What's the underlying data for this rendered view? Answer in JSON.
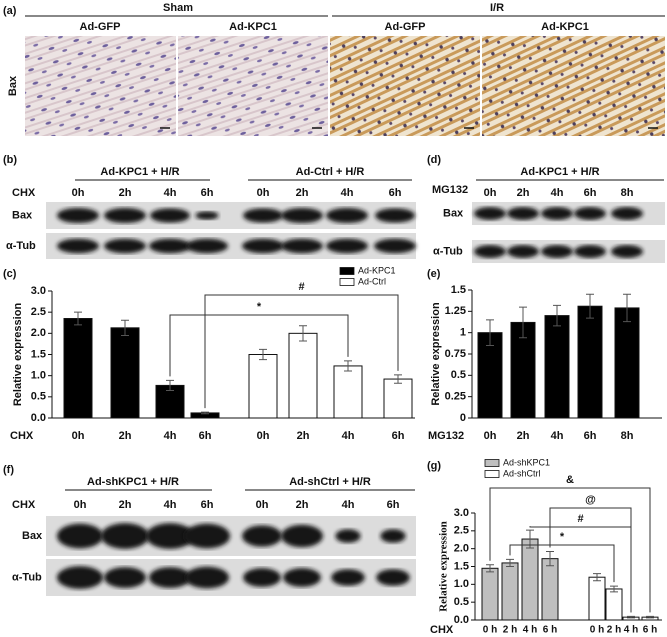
{
  "figure": {
    "a": {
      "label": "(a)",
      "groups": [
        "Sham",
        "I/R"
      ],
      "columns": [
        "Ad-GFP",
        "Ad-KPC1",
        "Ad-GFP",
        "Ad-KPC1"
      ],
      "row_label": "Bax"
    },
    "b": {
      "label": "(b)",
      "groups": [
        "Ad-KPC1 + H/R",
        "Ad-Ctrl + H/R"
      ],
      "time_label": "CHX",
      "times": [
        "0h",
        "2h",
        "4h",
        "6h",
        "0h",
        "2h",
        "4h",
        "6h"
      ],
      "rows": [
        "Bax",
        "α-Tub"
      ]
    },
    "d": {
      "label": "(d)",
      "groups": [
        "Ad-KPC1 + H/R"
      ],
      "time_label": "MG132",
      "times": [
        "0h",
        "2h",
        "4h",
        "6h",
        "8h"
      ],
      "rows": [
        "Bax",
        "α-Tub"
      ]
    },
    "f": {
      "label": "(f)",
      "groups": [
        "Ad-shKPC1 + H/R",
        "Ad-shCtrl + H/R"
      ],
      "time_label": "CHX",
      "times": [
        "0h",
        "2h",
        "4h",
        "6h",
        "0h",
        "2h",
        "4h",
        "6h"
      ],
      "rows": [
        "Bax",
        "α-Tub"
      ]
    }
  },
  "chart_data": [
    {
      "type": "bar",
      "label": "(c)",
      "y_label": "Relative expression",
      "x_label": "CHX",
      "categories": [
        "0h",
        "2h",
        "4h",
        "6h",
        "0h",
        "2h",
        "4h",
        "6h"
      ],
      "series": [
        {
          "name": "Ad-KPC1",
          "color": "#000000",
          "values": [
            2.35,
            2.13,
            0.77,
            0.12,
            null,
            null,
            null,
            null
          ],
          "errors": [
            0.15,
            0.18,
            0.12,
            0.02,
            null,
            null,
            null,
            null
          ]
        },
        {
          "name": "Ad-Ctrl",
          "color": "#ffffff",
          "values": [
            null,
            null,
            null,
            null,
            1.5,
            2.0,
            1.23,
            0.92
          ],
          "errors": [
            null,
            null,
            null,
            null,
            0.12,
            0.18,
            0.12,
            0.1
          ]
        }
      ],
      "ylim": [
        0,
        3
      ],
      "yticks": [
        {
          "value": 0,
          "label": "0.0"
        },
        0.5,
        {
          "value": 1,
          "label": "1.0"
        },
        1.5,
        {
          "value": 2,
          "label": "2.0"
        },
        2.5,
        {
          "value": 3,
          "label": "3.0"
        }
      ],
      "annotations": [
        "*",
        "#"
      ],
      "legend": "top-right"
    },
    {
      "type": "bar",
      "label": "(e)",
      "y_label": "Relative expression",
      "x_label": "MG132",
      "categories": [
        "0h",
        "2h",
        "4h",
        "6h",
        "8h"
      ],
      "color": "#000000",
      "values": [
        1.0,
        1.12,
        1.2,
        1.31,
        1.29
      ],
      "errors": [
        0.15,
        0.18,
        0.12,
        0.14,
        0.16
      ],
      "ylim": [
        0,
        1.5
      ],
      "yticks": [
        0,
        0.25,
        0.5,
        0.75,
        1,
        1.25,
        1.5
      ]
    },
    {
      "type": "bar",
      "label": "(g)",
      "y_label": "Relative expression",
      "x_label": "CHX",
      "categories": [
        "0 h",
        "2 h",
        "4 h",
        "6 h",
        "0 h",
        "2 h",
        "4 h",
        "6 h"
      ],
      "series": [
        {
          "name": "Ad-shKPC1",
          "color": "#bfbfbf",
          "values": [
            1.45,
            1.6,
            2.27,
            1.72,
            null,
            null,
            null,
            null
          ],
          "errors": [
            0.1,
            0.1,
            0.25,
            0.2,
            null,
            null,
            null,
            null
          ]
        },
        {
          "name": "Ad-shCtrl",
          "color": "#ffffff",
          "values": [
            null,
            null,
            null,
            null,
            1.2,
            0.87,
            0.08,
            0.08
          ],
          "errors": [
            null,
            null,
            null,
            null,
            0.1,
            0.08,
            0.02,
            0.02
          ]
        }
      ],
      "ylim": [
        0,
        3
      ],
      "yticks": [
        {
          "value": 0,
          "label": "0.0"
        },
        0.5,
        {
          "value": 1,
          "label": "1.0"
        },
        1.5,
        {
          "value": 2,
          "label": "2.0"
        },
        2.5,
        {
          "value": 3,
          "label": "3.0"
        }
      ],
      "annotations": [
        "*",
        "#",
        "@",
        "&"
      ],
      "legend": "top-left"
    }
  ]
}
